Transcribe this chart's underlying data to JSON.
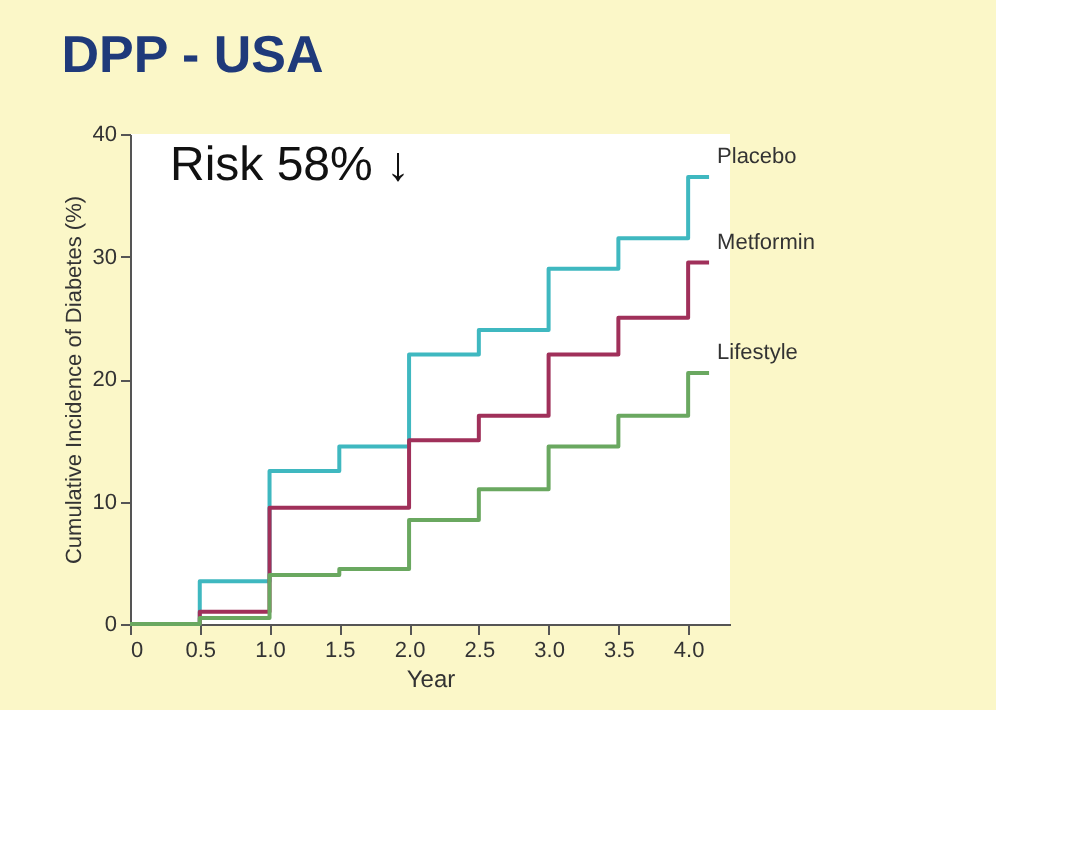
{
  "chart_data": {
    "type": "step",
    "title": "DPP - USA",
    "xlabel": "Year",
    "ylabel": "Cumulative Incidence of Diabetes (%)",
    "x": [
      0,
      0.5,
      1,
      1.5,
      2,
      2.5,
      3,
      3.5,
      4,
      4.15
    ],
    "series": [
      {
        "name": "Placebo",
        "color": "#3fb8c0",
        "values": [
          0,
          3.5,
          12.5,
          14.5,
          22,
          24,
          29,
          31.5,
          36.5,
          36.5
        ]
      },
      {
        "name": "Metformin",
        "color": "#a0305a",
        "values": [
          0,
          1,
          9.5,
          9.5,
          15,
          17,
          22,
          25,
          29.5,
          29.5
        ]
      },
      {
        "name": "Lifestyle",
        "color": "#6aa860",
        "values": [
          0,
          0.5,
          4,
          4.5,
          8.5,
          11,
          14.5,
          17,
          20.5,
          20.5
        ]
      }
    ],
    "xlim": [
      0,
      4.3
    ],
    "ylim": [
      0,
      40
    ],
    "xticks": [
      0,
      0.5,
      {
        "value": 1,
        "label": "1.0"
      },
      1.5,
      {
        "value": 2,
        "label": "2.0"
      },
      2.5,
      {
        "value": 3,
        "label": "3.0"
      },
      3.5,
      {
        "value": 4,
        "label": "4.0"
      }
    ],
    "yticks": [
      0,
      10,
      20,
      30,
      40
    ],
    "annotations": [
      "Risk 58% ↓"
    ],
    "grid": false,
    "legend": false
  }
}
